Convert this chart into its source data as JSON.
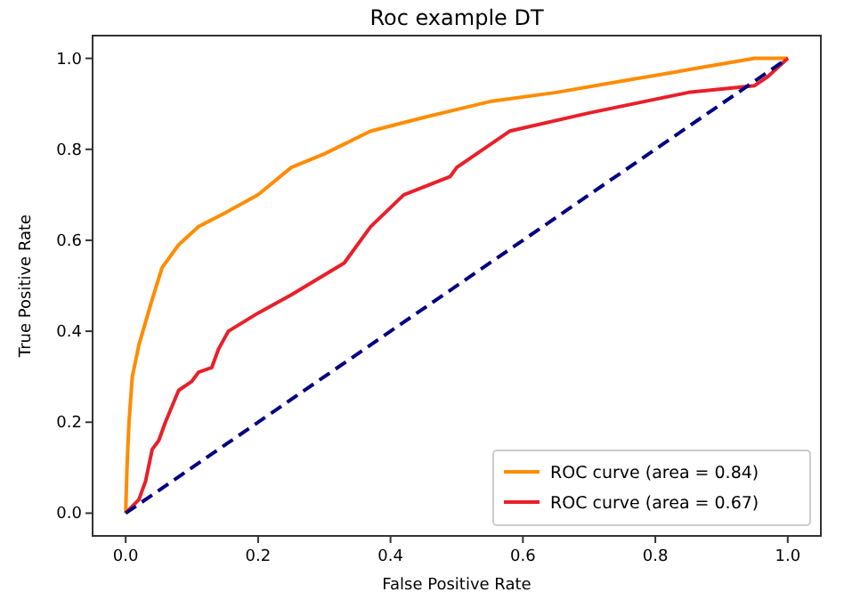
{
  "chart_data": {
    "type": "line",
    "title": "Roc example DT",
    "xlabel": "False Positive Rate",
    "ylabel": "True Positive Rate",
    "xlim": [
      -0.05,
      1.05
    ],
    "ylim": [
      -0.05,
      1.05
    ],
    "xticks": [
      {
        "value": 0,
        "label": "0.0"
      },
      0.2,
      0.4,
      0.6,
      0.8,
      {
        "value": 1,
        "label": "1.0"
      }
    ],
    "yticks": [
      {
        "value": 0,
        "label": "0.0"
      },
      0.2,
      0.4,
      0.6,
      0.8,
      {
        "value": 1,
        "label": "1.0"
      }
    ],
    "grid": false,
    "legend": "bottom right",
    "marker": "none",
    "series": [
      {
        "name": "ROC curve (area = 0.84)",
        "color": "#ff8c00",
        "x": [
          0,
          0.002,
          0.005,
          0.01,
          0.02,
          0.04,
          0.055,
          0.08,
          0.11,
          0.15,
          0.2,
          0.25,
          0.3,
          0.37,
          0.45,
          0.55,
          0.65,
          0.75,
          0.85,
          0.95,
          1
        ],
        "values": [
          0,
          0.1,
          0.2,
          0.3,
          0.37,
          0.47,
          0.54,
          0.59,
          0.63,
          0.66,
          0.7,
          0.76,
          0.79,
          0.84,
          0.87,
          0.905,
          0.925,
          0.95,
          0.975,
          1,
          1
        ]
      },
      {
        "name": "ROC curve (area = 0.67)",
        "color": "#e8202a",
        "x": [
          0,
          0.02,
          0.03,
          0.04,
          0.05,
          0.06,
          0.08,
          0.1,
          0.11,
          0.13,
          0.14,
          0.155,
          0.2,
          0.25,
          0.33,
          0.37,
          0.42,
          0.49,
          0.5,
          0.58,
          0.7,
          0.85,
          0.95,
          0.97,
          1
        ],
        "values": [
          0,
          0.03,
          0.07,
          0.14,
          0.16,
          0.2,
          0.27,
          0.29,
          0.31,
          0.32,
          0.36,
          0.4,
          0.44,
          0.48,
          0.55,
          0.63,
          0.7,
          0.74,
          0.76,
          0.84,
          0.88,
          0.925,
          0.94,
          0.96,
          1
        ]
      },
      {
        "color": "#000080",
        "line_style": "dashed",
        "x": [
          0,
          1
        ],
        "values": [
          0,
          1
        ]
      }
    ]
  }
}
